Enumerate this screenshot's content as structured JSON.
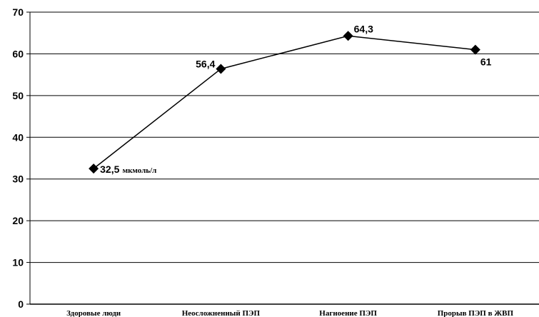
{
  "chart_data": {
    "type": "line",
    "categories": [
      "Здоровые люди",
      "Неосложненный ПЭП",
      "Нагноение ПЭП",
      "Прорыв ПЭП в ЖВП"
    ],
    "series": [
      {
        "values": [
          32.5,
          56.4,
          64.3,
          61
        ]
      }
    ],
    "data_labels": [
      "32,5",
      "56,4",
      "64,3",
      "61"
    ],
    "unit_annotation": "мкмоль/л",
    "y_ticks": [
      "0",
      "10",
      "20",
      "30",
      "40",
      "50",
      "60",
      "70"
    ],
    "ylim": [
      0,
      70
    ],
    "grid": true,
    "marker": "diamond",
    "line_color": "#000000",
    "title": "",
    "xlabel": "",
    "ylabel": ""
  }
}
